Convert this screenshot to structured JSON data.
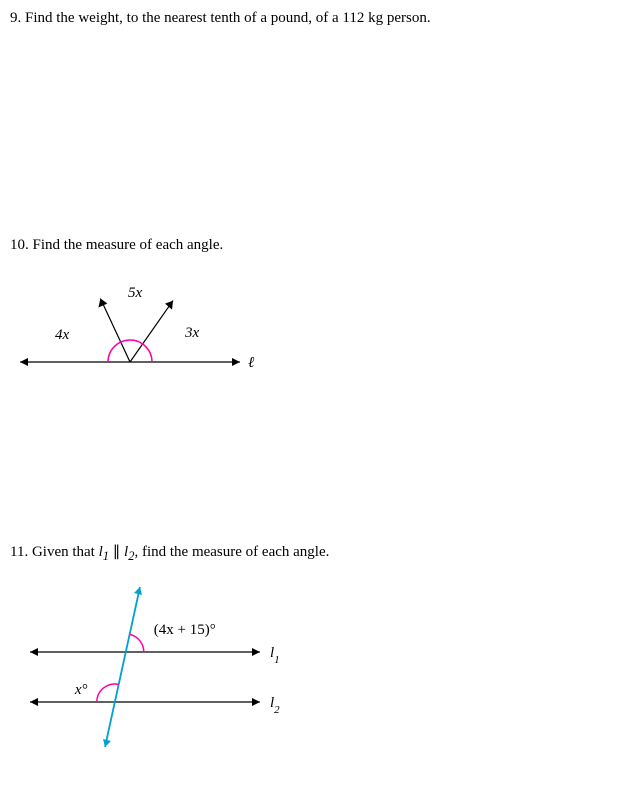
{
  "q9": {
    "number": "9.",
    "text": "Find the weight, to the nearest tenth of a pound, of a 112 kg person."
  },
  "q10": {
    "number": "10.",
    "text": "Find the measure of each angle.",
    "diagram": {
      "labels": {
        "left": "4x",
        "top": "5x",
        "right": "3x",
        "line": "ℓ"
      },
      "colors": {
        "line": "#000000",
        "arc": "#ff00aa",
        "arrow": "#000000"
      },
      "stroke_width": 1.2
    }
  },
  "q11": {
    "number": "11.",
    "prefix": "Given that ",
    "l1": "l",
    "l1sub": "1",
    "parallel": " ∥ ",
    "l2": "l",
    "l2sub": "2",
    "suffix": ", find the measure of each angle.",
    "diagram": {
      "labels": {
        "angle_top": "(4x + 15)°",
        "angle_bottom": "x°",
        "line1": "l",
        "line1sub": "1",
        "line2": "l",
        "line2sub": "2"
      },
      "colors": {
        "hline": "#000000",
        "transversal": "#00a0d0",
        "arc": "#ff00aa"
      },
      "stroke_width": 1.2
    }
  }
}
